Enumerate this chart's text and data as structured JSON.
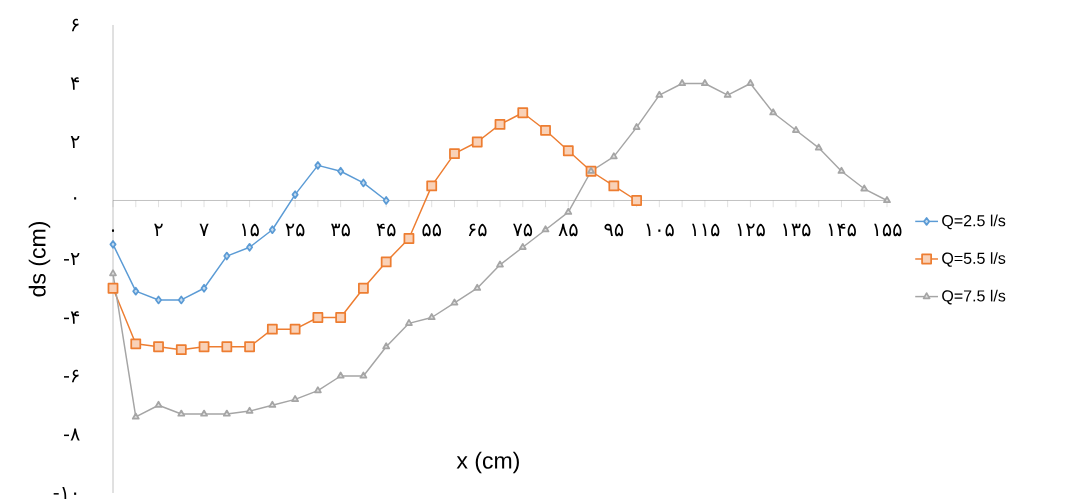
{
  "chart_data": {
    "type": "line",
    "xlabel": "x (cm)",
    "ylabel": "ds (cm)",
    "categories": [
      "۰",
      null,
      "۲",
      null,
      "۷",
      null,
      "۱۵",
      null,
      "۲۵",
      null,
      "۳۵",
      null,
      "۴۵",
      null,
      "۵۵",
      null,
      "۶۵",
      null,
      "۷۵",
      null,
      "۸۵",
      null,
      "۹۵",
      null,
      "۱۰۵",
      null,
      "۱۱۵",
      null,
      "۱۲۵",
      null,
      "۱۳۵",
      null,
      "۱۴۵",
      null,
      "۱۵۵"
    ],
    "ylim": [
      -10,
      6
    ],
    "yticks": [
      {
        "value": -10,
        "label": "-۱۰"
      },
      {
        "value": -8,
        "label": "-۸"
      },
      {
        "value": -6,
        "label": "-۶"
      },
      {
        "value": -4,
        "label": "-۴"
      },
      {
        "value": -2,
        "label": "-۲"
      },
      {
        "value": 0,
        "label": "۰"
      },
      {
        "value": 2,
        "label": "۲"
      },
      {
        "value": 4,
        "label": "۴"
      },
      {
        "value": 6,
        "label": "۶"
      }
    ],
    "legend": "right",
    "series": [
      {
        "name": "Q=2.5 l/s",
        "color": "#5b9bd5",
        "marker": "diamond",
        "values": [
          -1.5,
          -3.1,
          -3.4,
          -3.4,
          -3.0,
          -1.9,
          -1.6,
          -1.0,
          0.2,
          1.2,
          1.0,
          0.6,
          0,
          null,
          null,
          null,
          null,
          null,
          null,
          null,
          null,
          null,
          null,
          null,
          null,
          null,
          null,
          null,
          null,
          null,
          null,
          null,
          null,
          null,
          null
        ]
      },
      {
        "name": "Q=5.5 l/s",
        "color": "#ed7d31",
        "marker": "square",
        "values": [
          -3.0,
          -4.9,
          -5.0,
          -5.1,
          -5.0,
          -5.0,
          -5.0,
          -4.4,
          -4.4,
          -4.0,
          -4.0,
          -3.0,
          -2.1,
          -1.3,
          0.5,
          1.6,
          2.0,
          2.6,
          3.0,
          2.4,
          1.7,
          1.0,
          0.5,
          0,
          null,
          null,
          null,
          null,
          null,
          null,
          null,
          null,
          null,
          null,
          null
        ]
      },
      {
        "name": "Q=7.5 l/s",
        "color": "#a5a5a5",
        "marker": "triangle",
        "values": [
          -2.5,
          -7.4,
          -7.0,
          -7.3,
          -7.3,
          -7.3,
          -7.2,
          -7.0,
          -6.8,
          -6.5,
          -6.0,
          -6.0,
          -5.0,
          -4.2,
          -4.0,
          -3.5,
          -3.0,
          -2.2,
          -1.6,
          -1.0,
          -0.4,
          1.0,
          1.5,
          2.5,
          3.6,
          4.0,
          4.0,
          3.6,
          4.0,
          3.0,
          2.4,
          1.8,
          1.0,
          0.4,
          0
        ]
      }
    ]
  }
}
